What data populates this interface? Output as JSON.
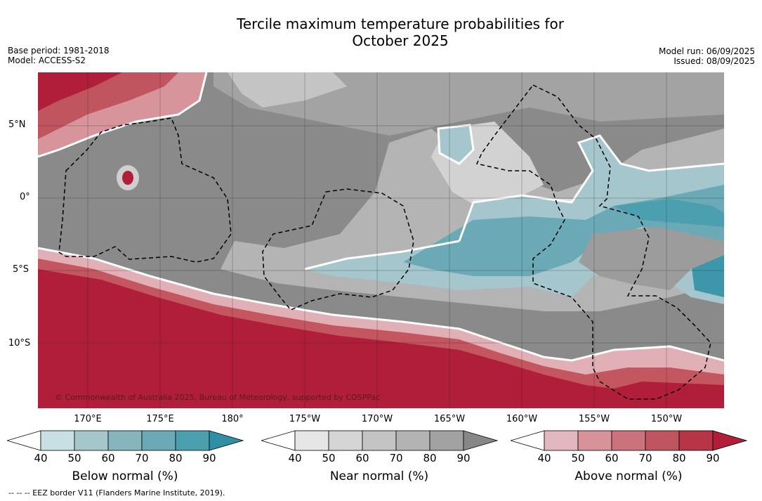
{
  "title_line1": "Tercile maximum temperature probabilities for",
  "title_line2": "October 2025",
  "meta_left": {
    "base_period": "Base period: 1981-2018",
    "model": "Model: ACCESS-S2"
  },
  "meta_right": {
    "model_run": "Model run: 06/09/2025",
    "issued": "Issued: 08/09/2025"
  },
  "latitudes": [
    "5°N",
    "0°",
    "5°S",
    "10°S"
  ],
  "longitudes": [
    "170°E",
    "175°E",
    "180°",
    "175°W",
    "170°W",
    "165°W",
    "160°W",
    "155°W",
    "150°W"
  ],
  "copyright": "© Commonwealth of Australia 2025, Bureau of Meteorology, supported by COSPPac",
  "colorbars": [
    {
      "title": "Below normal (%)",
      "ticks": [
        "40",
        "50",
        "60",
        "70",
        "80",
        "90"
      ],
      "colors": [
        "#ffffff",
        "#c8dfe4",
        "#a5c6cb",
        "#86b5be",
        "#6aa9b5",
        "#4c9fae",
        "#2e8fa5"
      ]
    },
    {
      "title": "Near normal (%)",
      "ticks": [
        "40",
        "50",
        "60",
        "70",
        "80",
        "90"
      ],
      "colors": [
        "#ffffff",
        "#e6e6e6",
        "#d5d5d5",
        "#c4c4c4",
        "#b3b3b3",
        "#a2a2a2",
        "#878787"
      ]
    },
    {
      "title": "Above normal (%)",
      "ticks": [
        "40",
        "50",
        "60",
        "70",
        "80",
        "90"
      ],
      "colors": [
        "#ffffff",
        "#e2b7bd",
        "#d79399",
        "#cb737c",
        "#c0545f",
        "#b73547",
        "#b01e3a"
      ]
    }
  ],
  "eez_note": "--  --  -- EEZ border V11 (Flanders Marine Institute, 2019)."
}
